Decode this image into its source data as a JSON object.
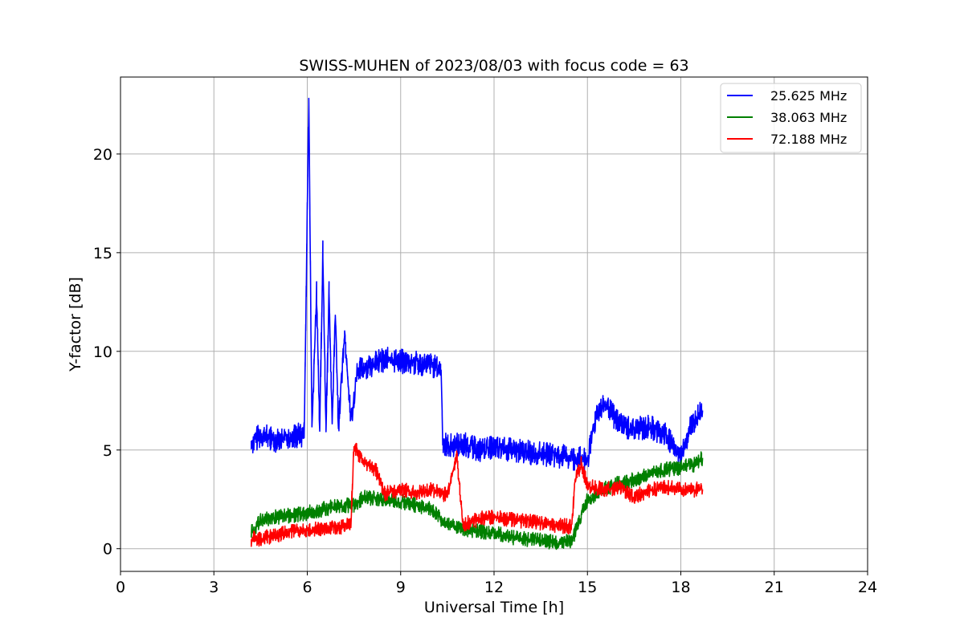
{
  "chart_data": {
    "type": "line",
    "title": "SWISS-MUHEN of 2023/08/03 with focus code = 63",
    "xlabel": "Universal Time [h]",
    "ylabel": "Y-factor [dB]",
    "xlim": [
      0,
      24
    ],
    "ylim": [
      -1.15,
      23.9
    ],
    "xticks": [
      0,
      3,
      6,
      9,
      12,
      15,
      18,
      21,
      24
    ],
    "yticks": [
      0,
      5,
      10,
      15,
      20
    ],
    "grid": true,
    "legend_position": "top-right",
    "series": [
      {
        "name": "25.625 MHz",
        "color": "#0000ff",
        "points": [
          [
            4.2,
            5.3
          ],
          [
            4.5,
            5.8
          ],
          [
            5.0,
            5.5
          ],
          [
            5.5,
            5.7
          ],
          [
            5.9,
            5.8
          ],
          [
            6.05,
            22.7
          ],
          [
            6.15,
            6.0
          ],
          [
            6.3,
            13.0
          ],
          [
            6.4,
            6.0
          ],
          [
            6.5,
            15.0
          ],
          [
            6.6,
            6.0
          ],
          [
            6.7,
            13.0
          ],
          [
            6.8,
            6.2
          ],
          [
            6.9,
            12.0
          ],
          [
            7.0,
            6.2
          ],
          [
            7.2,
            11.0
          ],
          [
            7.4,
            6.5
          ],
          [
            7.5,
            7.5
          ],
          [
            7.6,
            9.0
          ],
          [
            8.0,
            9.3
          ],
          [
            8.5,
            9.6
          ],
          [
            9.0,
            9.5
          ],
          [
            9.5,
            9.4
          ],
          [
            10.0,
            9.3
          ],
          [
            10.3,
            9.0
          ],
          [
            10.35,
            5.5
          ],
          [
            10.5,
            5.2
          ],
          [
            11.0,
            5.3
          ],
          [
            11.5,
            5.0
          ],
          [
            12.0,
            5.1
          ],
          [
            12.5,
            5.0
          ],
          [
            13.0,
            4.9
          ],
          [
            13.5,
            4.8
          ],
          [
            14.0,
            4.7
          ],
          [
            14.5,
            4.6
          ],
          [
            14.7,
            4.6
          ],
          [
            15.0,
            4.4
          ],
          [
            15.3,
            7.0
          ],
          [
            15.6,
            7.2
          ],
          [
            16.0,
            6.4
          ],
          [
            16.5,
            6.0
          ],
          [
            17.0,
            6.2
          ],
          [
            17.5,
            5.8
          ],
          [
            18.0,
            4.6
          ],
          [
            18.3,
            6.2
          ],
          [
            18.7,
            7.0
          ]
        ]
      },
      {
        "name": "38.063 MHz",
        "color": "#008000",
        "points": [
          [
            4.2,
            0.8
          ],
          [
            4.5,
            1.4
          ],
          [
            5.0,
            1.6
          ],
          [
            5.5,
            1.7
          ],
          [
            6.0,
            1.8
          ],
          [
            6.5,
            2.0
          ],
          [
            7.0,
            2.2
          ],
          [
            7.5,
            2.2
          ],
          [
            7.8,
            2.6
          ],
          [
            8.5,
            2.5
          ],
          [
            9.0,
            2.4
          ],
          [
            9.5,
            2.2
          ],
          [
            10.0,
            2.0
          ],
          [
            10.5,
            1.2
          ],
          [
            11.0,
            1.0
          ],
          [
            11.5,
            0.9
          ],
          [
            12.0,
            0.8
          ],
          [
            12.5,
            0.6
          ],
          [
            13.0,
            0.5
          ],
          [
            13.5,
            0.4
          ],
          [
            14.0,
            0.3
          ],
          [
            14.5,
            0.4
          ],
          [
            15.0,
            2.5
          ],
          [
            15.5,
            3.0
          ],
          [
            16.0,
            3.3
          ],
          [
            16.5,
            3.5
          ],
          [
            17.0,
            3.8
          ],
          [
            17.5,
            4.0
          ],
          [
            18.0,
            4.1
          ],
          [
            18.5,
            4.3
          ],
          [
            18.7,
            4.6
          ]
        ]
      },
      {
        "name": "72.188 MHz",
        "color": "#ff0000",
        "points": [
          [
            4.2,
            0.5
          ],
          [
            4.5,
            0.5
          ],
          [
            5.0,
            0.7
          ],
          [
            5.5,
            0.9
          ],
          [
            6.0,
            1.0
          ],
          [
            6.5,
            1.0
          ],
          [
            7.0,
            1.1
          ],
          [
            7.4,
            1.2
          ],
          [
            7.5,
            5.2
          ],
          [
            7.8,
            4.4
          ],
          [
            8.2,
            4.0
          ],
          [
            8.5,
            2.8
          ],
          [
            9.0,
            3.0
          ],
          [
            9.5,
            2.8
          ],
          [
            10.0,
            3.0
          ],
          [
            10.5,
            2.7
          ],
          [
            10.8,
            4.8
          ],
          [
            11.0,
            1.2
          ],
          [
            11.5,
            1.5
          ],
          [
            12.0,
            1.6
          ],
          [
            12.5,
            1.5
          ],
          [
            13.0,
            1.4
          ],
          [
            13.5,
            1.3
          ],
          [
            14.0,
            1.2
          ],
          [
            14.5,
            1.1
          ],
          [
            14.6,
            3.5
          ],
          [
            14.8,
            4.3
          ],
          [
            15.0,
            3.2
          ],
          [
            15.5,
            3.0
          ],
          [
            16.0,
            3.1
          ],
          [
            16.5,
            2.6
          ],
          [
            17.0,
            3.0
          ],
          [
            17.5,
            3.1
          ],
          [
            18.0,
            3.0
          ],
          [
            18.5,
            3.0
          ],
          [
            18.7,
            3.0
          ]
        ]
      }
    ]
  }
}
